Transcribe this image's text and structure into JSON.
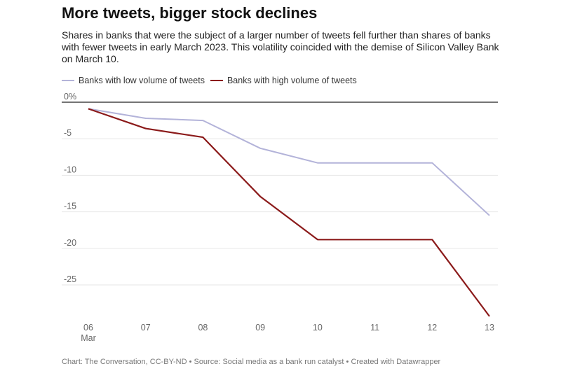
{
  "title": "More tweets, bigger stock declines",
  "subtitle": "Shares in banks that were the subject of a larger number of tweets fell further than shares of banks with fewer tweets in early March 2023. This volatility coincided with the demise of Silicon Valley Bank on March 10.",
  "footer": "Chart: The Conversation, CC-BY-ND • Source: Social media as a bank run catalyst • Created with Datawrapper",
  "colors": {
    "low": "#b3b3d9",
    "high": "#8b1a1a",
    "grid": "#e6e6e6",
    "zero": "#222222",
    "tick": "#666666"
  },
  "chart_data": {
    "type": "line",
    "x": [
      "06",
      "07",
      "08",
      "09",
      "10",
      "11",
      "12",
      "13"
    ],
    "x_sublabel": "Mar",
    "yticks": [
      0,
      -5,
      -10,
      -15,
      -20,
      -25
    ],
    "ytick_labels": [
      "0%",
      "-5",
      "-10",
      "-15",
      "-20",
      "-25"
    ],
    "ylim": [
      -29.5,
      0
    ],
    "grid": true,
    "legend": "top-left",
    "series": [
      {
        "name": "Banks with low volume of tweets",
        "color": "#b3b3d9",
        "values": [
          -0.9,
          -2.2,
          -2.5,
          -6.3,
          -8.3,
          -8.3,
          -8.3,
          -15.5
        ]
      },
      {
        "name": "Banks with high volume of tweets",
        "color": "#8b1a1a",
        "values": [
          -0.9,
          -3.6,
          -4.8,
          -12.9,
          -18.8,
          -18.8,
          -18.8,
          -29.3
        ]
      }
    ]
  }
}
